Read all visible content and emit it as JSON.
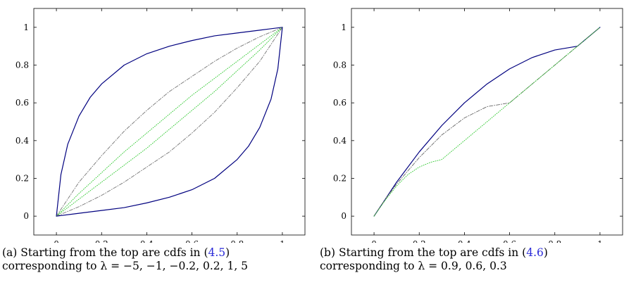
{
  "chart_data": [
    {
      "type": "line",
      "xlim": [
        -0.1,
        1.1
      ],
      "ylim": [
        -0.1,
        1.1
      ],
      "xticks": [
        0,
        0.2,
        0.4,
        0.6,
        0.8,
        1
      ],
      "yticks": [
        0,
        0.2,
        0.4,
        0.6,
        0.8,
        1
      ],
      "xtick_labels": [
        "0",
        "0.2",
        "0.4",
        "0.6",
        "0.8",
        "1"
      ],
      "ytick_labels": [
        "0",
        "0.2",
        "0.4",
        "0.6",
        "0.8",
        "1"
      ],
      "grid": false,
      "legend": "none",
      "series": [
        {
          "lambda": -5,
          "color": "#00007f",
          "style": "solid",
          "x": [
            0,
            0.02,
            0.05,
            0.1,
            0.15,
            0.2,
            0.3,
            0.4,
            0.5,
            0.6,
            0.7,
            0.8,
            0.9,
            1
          ],
          "y": [
            0,
            0.22,
            0.38,
            0.53,
            0.63,
            0.7,
            0.8,
            0.86,
            0.9,
            0.93,
            0.955,
            0.97,
            0.985,
            1
          ]
        },
        {
          "lambda": -1,
          "color": "#777777",
          "style": "dashdot",
          "x": [
            0,
            0.1,
            0.2,
            0.3,
            0.4,
            0.5,
            0.6,
            0.7,
            0.8,
            0.9,
            1
          ],
          "y": [
            0,
            0.18,
            0.32,
            0.45,
            0.56,
            0.66,
            0.74,
            0.82,
            0.89,
            0.95,
            1
          ]
        },
        {
          "lambda": -0.2,
          "color": "#2cc82c",
          "style": "dotted",
          "x": [
            0,
            0.1,
            0.2,
            0.3,
            0.4,
            0.5,
            0.6,
            0.7,
            0.8,
            0.9,
            1
          ],
          "y": [
            0,
            0.12,
            0.23,
            0.34,
            0.44,
            0.54,
            0.64,
            0.73,
            0.82,
            0.91,
            1
          ]
        },
        {
          "lambda": 0.2,
          "color": "#2cc82c",
          "style": "dotted",
          "x": [
            0,
            0.1,
            0.2,
            0.3,
            0.4,
            0.5,
            0.6,
            0.7,
            0.8,
            0.9,
            1
          ],
          "y": [
            0,
            0.09,
            0.18,
            0.27,
            0.36,
            0.46,
            0.56,
            0.66,
            0.77,
            0.88,
            1
          ]
        },
        {
          "lambda": 1,
          "color": "#777777",
          "style": "dashdot",
          "x": [
            0,
            0.1,
            0.2,
            0.3,
            0.4,
            0.5,
            0.6,
            0.7,
            0.8,
            0.9,
            1
          ],
          "y": [
            0,
            0.05,
            0.11,
            0.18,
            0.26,
            0.34,
            0.44,
            0.55,
            0.68,
            0.82,
            1
          ]
        },
        {
          "lambda": 5,
          "color": "#00007f",
          "style": "solid",
          "x": [
            0,
            0.1,
            0.2,
            0.3,
            0.4,
            0.5,
            0.6,
            0.7,
            0.8,
            0.85,
            0.9,
            0.95,
            0.98,
            1
          ],
          "y": [
            0,
            0.015,
            0.03,
            0.045,
            0.07,
            0.1,
            0.14,
            0.2,
            0.3,
            0.37,
            0.47,
            0.62,
            0.78,
            1
          ]
        }
      ]
    },
    {
      "type": "line",
      "xlim": [
        -0.1,
        1.1
      ],
      "ylim": [
        -0.1,
        1.1
      ],
      "xticks": [
        0,
        0.2,
        0.4,
        0.6,
        0.8,
        1
      ],
      "yticks": [
        0,
        0.2,
        0.4,
        0.6,
        0.8,
        1
      ],
      "xtick_labels": [
        "0",
        "0.2",
        "0.4",
        "0.6",
        "0.8",
        "1"
      ],
      "ytick_labels": [
        "0",
        "0.2",
        "0.4",
        "0.6",
        "0.8",
        "1"
      ],
      "grid": false,
      "legend": "none",
      "series": [
        {
          "lambda": 0.9,
          "color": "#00007f",
          "style": "solid",
          "x": [
            0,
            0.05,
            0.1,
            0.2,
            0.3,
            0.4,
            0.5,
            0.6,
            0.7,
            0.8,
            0.9,
            1
          ],
          "y": [
            0,
            0.09,
            0.18,
            0.34,
            0.48,
            0.6,
            0.7,
            0.78,
            0.84,
            0.88,
            0.9,
            1
          ]
        },
        {
          "lambda": 0.6,
          "color": "#666666",
          "style": "dashdot",
          "x": [
            0,
            0.05,
            0.1,
            0.2,
            0.3,
            0.4,
            0.5,
            0.6,
            0.7,
            0.8,
            0.9,
            1
          ],
          "y": [
            0,
            0.09,
            0.17,
            0.31,
            0.43,
            0.52,
            0.58,
            0.6,
            0.7,
            0.8,
            0.9,
            1
          ]
        },
        {
          "lambda": 0.3,
          "color": "#2cc82c",
          "style": "dotted",
          "x": [
            0,
            0.05,
            0.1,
            0.15,
            0.2,
            0.25,
            0.3,
            0.4,
            0.5,
            0.6,
            0.7,
            0.8,
            0.9,
            1
          ],
          "y": [
            0,
            0.085,
            0.16,
            0.22,
            0.26,
            0.285,
            0.3,
            0.4,
            0.5,
            0.6,
            0.7,
            0.8,
            0.9,
            1
          ]
        }
      ]
    }
  ],
  "captions": [
    {
      "label": "(a)",
      "line1_pre": "Starting from the top are cdfs in (",
      "ref": "4.5",
      "line1_post": ")",
      "line2": "corresponding to λ = −5, −1, −0.2, 0.2, 1, 5"
    },
    {
      "label": "(b)",
      "line1_pre": "Starting from the top are cdfs in (",
      "ref": "4.6",
      "line1_post": ")",
      "line2": "corresponding to λ = 0.9, 0.6, 0.3"
    }
  ]
}
